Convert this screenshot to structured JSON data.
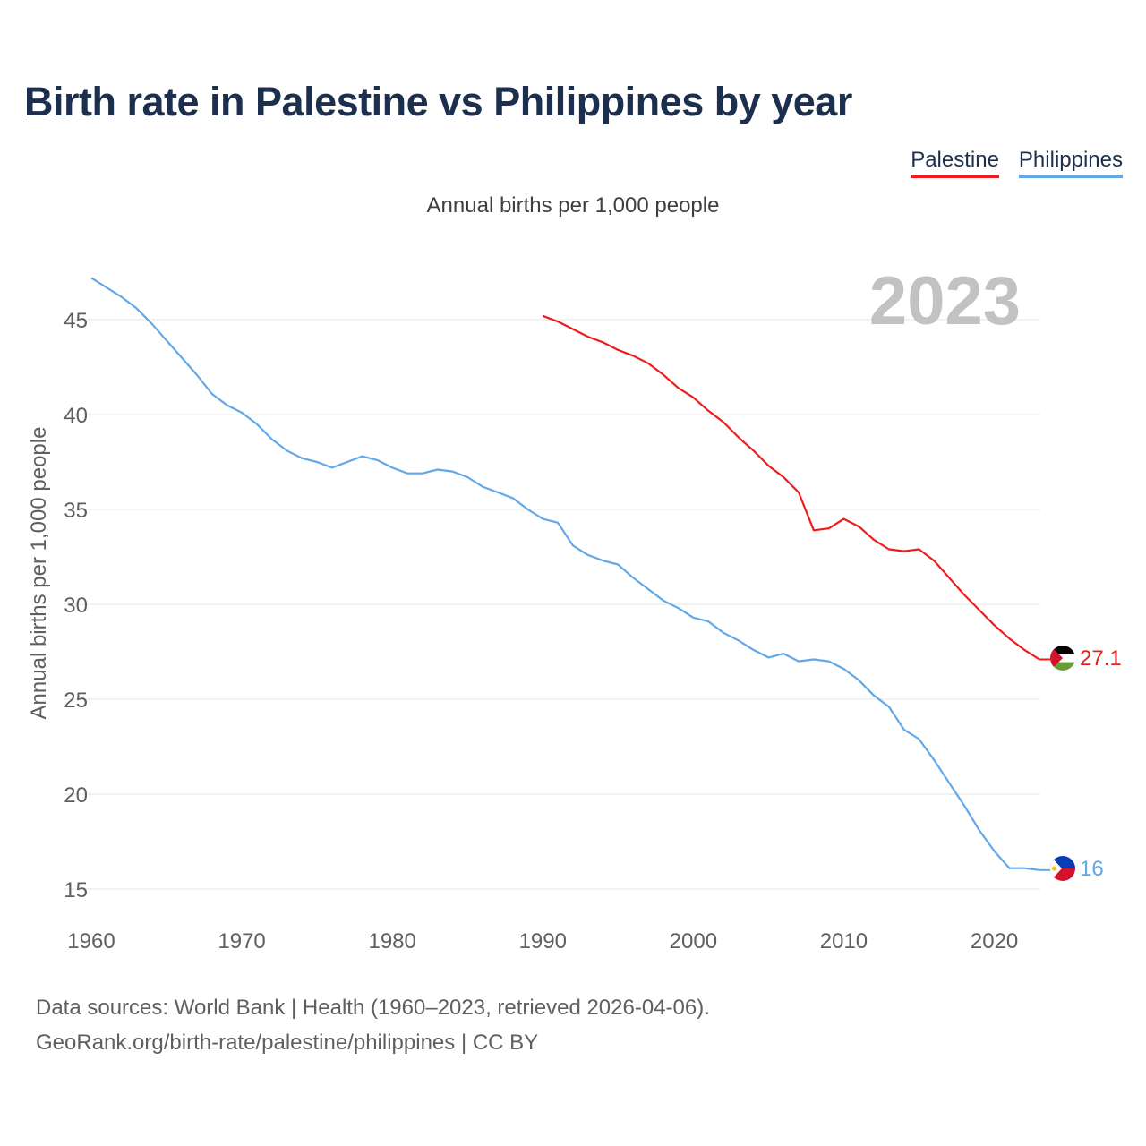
{
  "colors": {
    "palestine": "#ee1c1c",
    "philippines": "#62a8e8",
    "title": "#1c2f4e"
  },
  "header": {
    "title": "Birth rate in Palestine vs Philippines by year"
  },
  "legend": [
    {
      "label": "Palestine",
      "color": "#ee1c1c"
    },
    {
      "label": "Philippines",
      "color": "#62a8e8"
    }
  ],
  "footer": {
    "line1": "Data sources: World Bank | Health (1960–2023, retrieved 2026-04-06).",
    "line2": "GeoRank.org/birth-rate/palestine/philippines | CC BY"
  },
  "chart_data": {
    "type": "line",
    "title": "Birth rate in Palestine vs Philippines by year",
    "subtitle": "Annual births per 1,000 people",
    "ylabel": "Annual births per 1,000 people",
    "xlabel": "",
    "year_watermark": "2023",
    "xlim": [
      1960,
      2023
    ],
    "ylim": [
      15,
      45
    ],
    "xticks": [
      1960,
      1970,
      1980,
      1990,
      2000,
      2010,
      2020
    ],
    "yticks": [
      15,
      20,
      25,
      30,
      35,
      40,
      45
    ],
    "grid": true,
    "legend_position": "top-right",
    "series": [
      {
        "name": "Palestine",
        "color": "#ee1c1c",
        "end_label": "27.1",
        "x": [
          1990,
          1991,
          1992,
          1993,
          1994,
          1995,
          1996,
          1997,
          1998,
          1999,
          2000,
          2001,
          2002,
          2003,
          2004,
          2005,
          2006,
          2007,
          2008,
          2009,
          2010,
          2011,
          2012,
          2013,
          2014,
          2015,
          2016,
          2017,
          2018,
          2019,
          2020,
          2021,
          2022,
          2023
        ],
        "values": [
          45.2,
          44.9,
          44.5,
          44.1,
          43.8,
          43.4,
          43.1,
          42.7,
          42.1,
          41.4,
          40.9,
          40.2,
          39.6,
          38.8,
          38.1,
          37.3,
          36.7,
          35.9,
          33.9,
          34.0,
          34.5,
          34.1,
          33.4,
          32.9,
          32.8,
          32.9,
          32.3,
          31.4,
          30.5,
          29.7,
          28.9,
          28.2,
          27.6,
          27.1
        ]
      },
      {
        "name": "Philippines",
        "color": "#62a8e8",
        "end_label": "16",
        "x": [
          1960,
          1961,
          1962,
          1963,
          1964,
          1965,
          1966,
          1967,
          1968,
          1969,
          1970,
          1971,
          1972,
          1973,
          1974,
          1975,
          1976,
          1977,
          1978,
          1979,
          1980,
          1981,
          1982,
          1983,
          1984,
          1985,
          1986,
          1987,
          1988,
          1989,
          1990,
          1991,
          1992,
          1993,
          1994,
          1995,
          1996,
          1997,
          1998,
          1999,
          2000,
          2001,
          2002,
          2003,
          2004,
          2005,
          2006,
          2007,
          2008,
          2009,
          2010,
          2011,
          2012,
          2013,
          2014,
          2015,
          2016,
          2017,
          2018,
          2019,
          2020,
          2021,
          2022,
          2023
        ],
        "values": [
          47.2,
          46.7,
          46.2,
          45.6,
          44.8,
          43.9,
          43.0,
          42.1,
          41.1,
          40.5,
          40.1,
          39.5,
          38.7,
          38.1,
          37.7,
          37.5,
          37.2,
          37.5,
          37.8,
          37.6,
          37.2,
          36.9,
          36.9,
          37.1,
          37.0,
          36.7,
          36.2,
          35.9,
          35.6,
          35.0,
          34.5,
          34.3,
          33.1,
          32.6,
          32.3,
          32.1,
          31.4,
          30.8,
          30.2,
          29.8,
          29.3,
          29.1,
          28.5,
          28.1,
          27.6,
          27.2,
          27.4,
          27.0,
          27.1,
          27.0,
          26.6,
          26.0,
          25.2,
          24.6,
          23.4,
          22.9,
          21.8,
          20.6,
          19.4,
          18.1,
          17.0,
          16.1,
          16.1,
          16.0
        ]
      }
    ]
  }
}
